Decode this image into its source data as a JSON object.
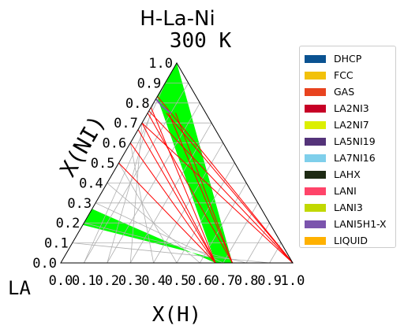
{
  "chart_data": {
    "type": "ternary-phase-diagram",
    "title": "H-La-Ni",
    "subtitle": "300 K",
    "corners": {
      "bottom_left": "LA",
      "bottom_right": "H",
      "top": "NI"
    },
    "xlabel": "X(H)",
    "ylabel": "X(NI)",
    "corner_label": "LA",
    "xlim": [
      0,
      1
    ],
    "ylim": [
      0,
      1
    ],
    "grid": true,
    "ticks": [
      "0.0",
      "0.1",
      "0.2",
      "0.3",
      "0.4",
      "0.5",
      "0.6",
      "0.7",
      "0.8",
      "0.9",
      "1.0"
    ],
    "legend_position": "right",
    "legend": [
      {
        "label": "DHCP",
        "color": "#0a5291"
      },
      {
        "label": "FCC",
        "color": "#f2c10a"
      },
      {
        "label": "GAS",
        "color": "#e8431f"
      },
      {
        "label": "LA2NI3",
        "color": "#c70026"
      },
      {
        "label": "LA2NI7",
        "color": "#dcef00"
      },
      {
        "label": "LA5NI19",
        "color": "#543379"
      },
      {
        "label": "LA7NI16",
        "color": "#7fcfeb"
      },
      {
        "label": "LAHX",
        "color": "#1e2a14"
      },
      {
        "label": "LANI",
        "color": "#ff4469"
      },
      {
        "label": "LANI3",
        "color": "#c1d800"
      },
      {
        "label": "LANI5H1-X",
        "color": "#7b54ad"
      },
      {
        "label": "LIQUID",
        "color": "#ffb100"
      }
    ],
    "regions": [
      {
        "phase_color": "#00ff00",
        "vertices": [
          [
            0.0,
            0.19
          ],
          [
            0.0,
            0.27
          ],
          [
            0.667,
            0.0
          ],
          [
            0.74,
            0.0
          ]
        ]
      },
      {
        "phase_color": "#00ff00",
        "vertices": [
          [
            0.0,
            0.83
          ],
          [
            0.0,
            1.0
          ],
          [
            0.74,
            0.0
          ],
          [
            0.667,
            0.0
          ]
        ]
      }
    ],
    "tie_lines": {
      "color": "#ff0000",
      "segments": [
        [
          [
            0.667,
            0.0
          ],
          [
            0.0,
            0.5
          ]
        ],
        [
          [
            0.667,
            0.0
          ],
          [
            0.0,
            0.6
          ]
        ],
        [
          [
            0.667,
            0.0
          ],
          [
            0.0,
            0.667
          ]
        ],
        [
          [
            0.667,
            0.0
          ],
          [
            0.0,
            0.7
          ]
        ],
        [
          [
            0.667,
            0.0
          ],
          [
            0.0,
            0.778
          ]
        ],
        [
          [
            0.74,
            0.0
          ],
          [
            0.0,
            0.75
          ]
        ],
        [
          [
            0.74,
            0.0
          ],
          [
            0.09,
            0.75
          ]
        ],
        [
          [
            0.74,
            0.0
          ],
          [
            0.12,
            0.75
          ]
        ],
        [
          [
            1.0,
            0.0
          ],
          [
            0.0,
            0.833
          ]
        ],
        [
          [
            1.0,
            0.0
          ],
          [
            0.0,
            0.76
          ]
        ],
        [
          [
            1.0,
            0.0
          ],
          [
            0.0,
            0.7
          ]
        ],
        [
          [
            1.0,
            0.0
          ],
          [
            0.08,
            0.75
          ]
        ]
      ]
    },
    "markers": [
      {
        "phase_color": "#7b54ad",
        "points": [
          [
            0.0,
            0.82
          ],
          [
            0.05,
            0.78
          ],
          [
            0.1,
            0.75
          ]
        ]
      }
    ]
  }
}
